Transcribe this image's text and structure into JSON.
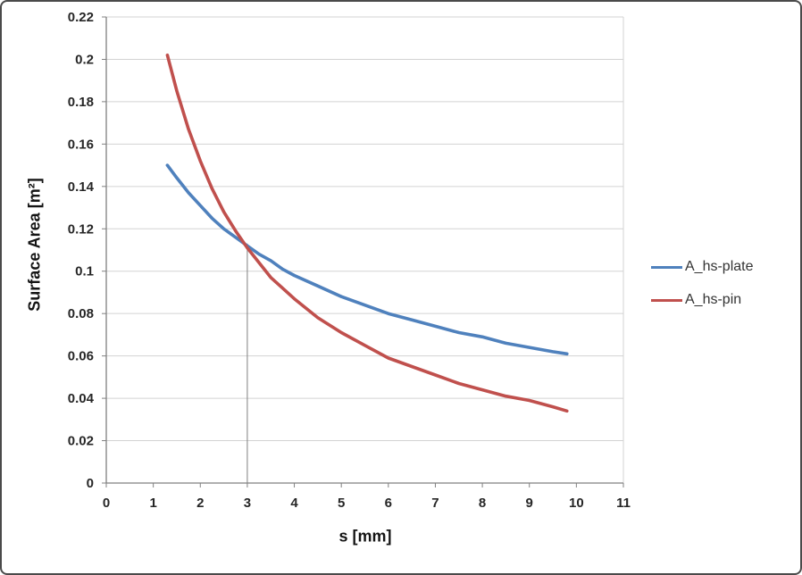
{
  "chart_data": {
    "type": "line",
    "title": "",
    "xlabel": "s [mm]",
    "ylabel": "Surface Area [m²]",
    "xlim": [
      0,
      11
    ],
    "ylim": [
      0,
      0.22
    ],
    "x_ticks": [
      0,
      1,
      2,
      3,
      4,
      5,
      6,
      7,
      8,
      9,
      10,
      11
    ],
    "y_ticks": [
      0,
      0.02,
      0.04,
      0.06,
      0.08,
      0.1,
      0.12,
      0.14,
      0.16,
      0.18,
      0.2,
      0.22
    ],
    "grid": "horizontal",
    "legend_position": "right",
    "colors": {
      "grid": "#D3D3D3",
      "axis": "#808080",
      "marker": "#808080"
    },
    "series": [
      {
        "name": "A_hs-plate",
        "color": "#4F81BD",
        "x": [
          1.3,
          1.5,
          1.75,
          2,
          2.25,
          2.5,
          2.75,
          3,
          3.25,
          3.5,
          3.75,
          4,
          4.5,
          5,
          5.5,
          6,
          6.5,
          7,
          7.5,
          8,
          8.5,
          9,
          9.5,
          9.8
        ],
        "y": [
          0.15,
          0.144,
          0.137,
          0.131,
          0.125,
          0.12,
          0.116,
          0.112,
          0.108,
          0.105,
          0.101,
          0.098,
          0.093,
          0.088,
          0.084,
          0.08,
          0.077,
          0.074,
          0.071,
          0.069,
          0.066,
          0.064,
          0.062,
          0.061
        ]
      },
      {
        "name": "A_hs-pin",
        "color": "#C0504D",
        "x": [
          1.3,
          1.5,
          1.75,
          2,
          2.25,
          2.5,
          2.75,
          3,
          3.25,
          3.5,
          3.75,
          4,
          4.5,
          5,
          5.5,
          6,
          6.5,
          7,
          7.5,
          8,
          8.5,
          9,
          9.5,
          9.8
        ],
        "y": [
          0.202,
          0.185,
          0.167,
          0.152,
          0.139,
          0.128,
          0.119,
          0.111,
          0.104,
          0.097,
          0.092,
          0.087,
          0.078,
          0.071,
          0.065,
          0.059,
          0.055,
          0.051,
          0.047,
          0.044,
          0.041,
          0.039,
          0.036,
          0.034
        ]
      }
    ],
    "marker_line": {
      "x": 3,
      "y_from": 0,
      "y_to": 0.113
    }
  }
}
